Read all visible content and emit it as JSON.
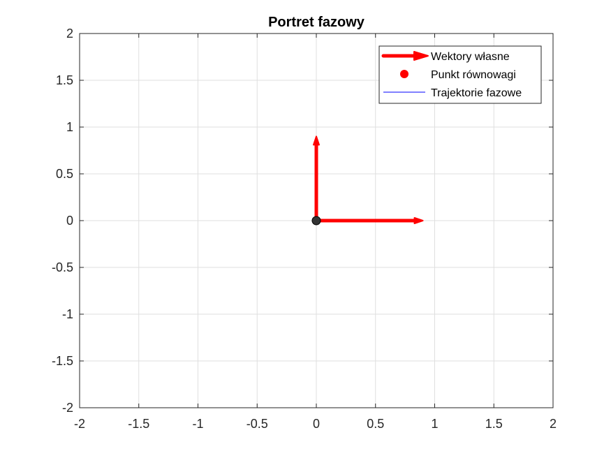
{
  "figure": {
    "background": "#ffffff"
  },
  "chart_data": {
    "type": "line",
    "title": "Portret fazowy",
    "xlabel": "",
    "ylabel": "",
    "xlim": [
      -2,
      2
    ],
    "ylim": [
      -2,
      2
    ],
    "xticks": [
      -2,
      -1.5,
      -1,
      -0.5,
      0,
      0.5,
      1,
      1.5,
      2
    ],
    "yticks": [
      -2,
      -1.5,
      -1,
      -0.5,
      0,
      0.5,
      1,
      1.5,
      2
    ],
    "xtick_labels": [
      "-2",
      "-1.5",
      "-1",
      "-0.5",
      "0",
      "0.5",
      "1",
      "1.5",
      "2"
    ],
    "ytick_labels": [
      "-2",
      "-1.5",
      "-1",
      "-0.5",
      "0",
      "0.5",
      "1",
      "1.5",
      "2"
    ],
    "grid": true,
    "legend_position": "top-right",
    "series": [
      {
        "name": "Wektory własne",
        "kind": "arrows",
        "color": "#ff0000",
        "vectors": [
          {
            "x0": 0,
            "y0": 0,
            "dx": 0.9,
            "dy": 0
          },
          {
            "x0": 0,
            "y0": 0,
            "dx": 0,
            "dy": 0.9
          }
        ]
      },
      {
        "name": "Punkt równowagi",
        "kind": "marker",
        "color": "#ff0000",
        "points": [
          {
            "x": 0,
            "y": 0
          }
        ]
      },
      {
        "name": "Trajektorie fazowe",
        "kind": "line",
        "color": "#0000ff",
        "points": []
      }
    ],
    "equilibrium_marker_color": "#333333",
    "colors": {
      "axis": "#262626",
      "grid": "#dfdfdf"
    }
  }
}
